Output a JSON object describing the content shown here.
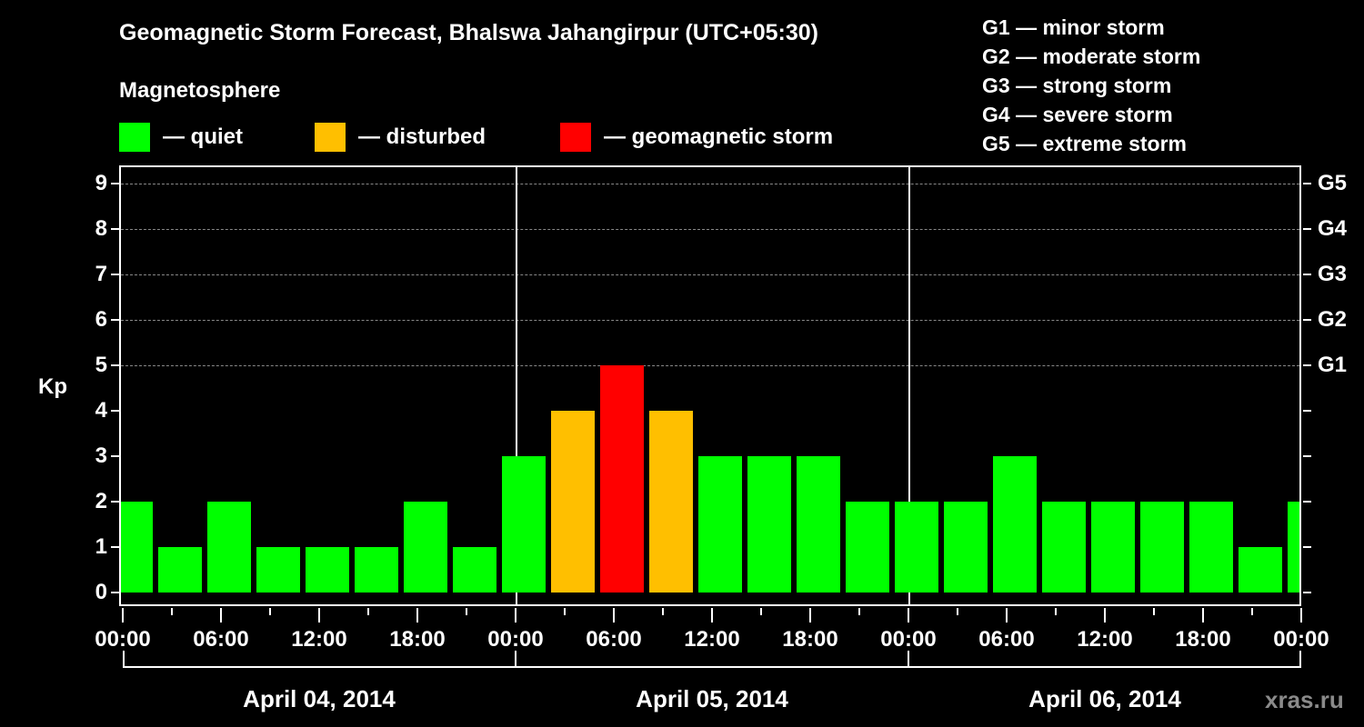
{
  "header": {
    "title": "Geomagnetic Storm Forecast, Bhalswa Jahangirpur (UTC+05:30)",
    "subtitle": "Magnetosphere"
  },
  "legend": [
    {
      "label": "— quiet",
      "color": "#00ff00"
    },
    {
      "label": "— disturbed",
      "color": "#ffbf00"
    },
    {
      "label": "— geomagnetic storm",
      "color": "#ff0000"
    }
  ],
  "g_legend": [
    "G1 — minor storm",
    "G2 — moderate storm",
    "G3 — strong storm",
    "G4 — severe storm",
    "G5 — extreme storm"
  ],
  "axes": {
    "ylabel": "Kp",
    "yticks": [
      "0",
      "1",
      "2",
      "3",
      "4",
      "5",
      "6",
      "7",
      "8",
      "9"
    ],
    "right_ticks": [
      "G1",
      "G2",
      "G3",
      "G4",
      "G5"
    ],
    "xticks": [
      "00:00",
      "06:00",
      "12:00",
      "18:00",
      "00:00",
      "06:00",
      "12:00",
      "18:00",
      "00:00",
      "06:00",
      "12:00",
      "18:00",
      "00:00"
    ],
    "days": [
      "April 04, 2014",
      "April 05, 2014",
      "April 06, 2014"
    ]
  },
  "watermark": "xras.ru",
  "chart_data": {
    "type": "bar",
    "title": "Geomagnetic Storm Forecast, Bhalswa Jahangirpur (UTC+05:30)",
    "xlabel": "",
    "ylabel": "Kp",
    "ylim": [
      -0.3,
      9.4
    ],
    "grid": true,
    "legend": [
      "quiet",
      "disturbed",
      "geomagnetic storm"
    ],
    "legend_position": "top",
    "categories": [
      "Apr04 00:00",
      "Apr04 03:00",
      "Apr04 06:00",
      "Apr04 09:00",
      "Apr04 12:00",
      "Apr04 15:00",
      "Apr04 18:00",
      "Apr04 21:00",
      "Apr05 00:00",
      "Apr05 03:00",
      "Apr05 06:00",
      "Apr05 09:00",
      "Apr05 12:00",
      "Apr05 15:00",
      "Apr05 18:00",
      "Apr05 21:00",
      "Apr06 00:00",
      "Apr06 03:00",
      "Apr06 06:00",
      "Apr06 09:00",
      "Apr06 12:00",
      "Apr06 15:00",
      "Apr06 18:00",
      "Apr06 21:00",
      "Apr07 00:00"
    ],
    "values": [
      2,
      1,
      2,
      1,
      1,
      1,
      2,
      1,
      3,
      4,
      5,
      4,
      3,
      3,
      3,
      2,
      2,
      2,
      3,
      2,
      2,
      2,
      2,
      1,
      2
    ],
    "status": [
      "quiet",
      "quiet",
      "quiet",
      "quiet",
      "quiet",
      "quiet",
      "quiet",
      "quiet",
      "quiet",
      "disturbed",
      "storm",
      "disturbed",
      "quiet",
      "quiet",
      "quiet",
      "quiet",
      "quiet",
      "quiet",
      "quiet",
      "quiet",
      "quiet",
      "quiet",
      "quiet",
      "quiet",
      "quiet"
    ],
    "colors": {
      "quiet": "#00ff00",
      "disturbed": "#ffbf00",
      "storm": "#ff0000"
    },
    "right_axis": {
      "G1": 5,
      "G2": 6,
      "G3": 7,
      "G4": 8,
      "G5": 9
    }
  }
}
